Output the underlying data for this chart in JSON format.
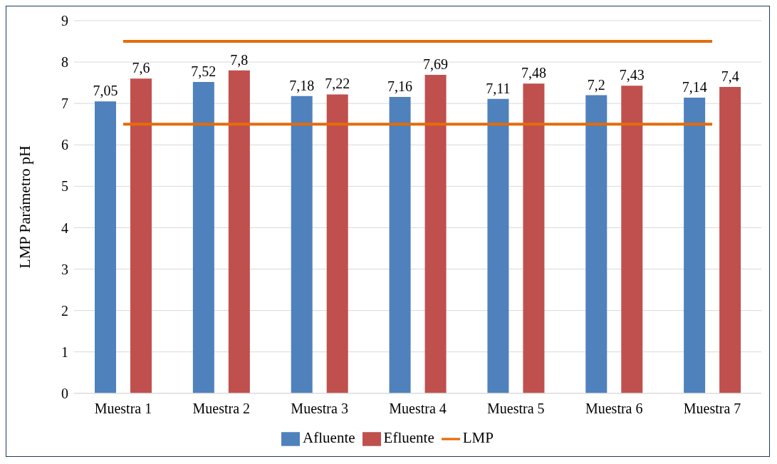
{
  "chart_data": {
    "type": "bar",
    "ylabel": "LMP Parámetro pH",
    "categories": [
      "Muestra 1",
      "Muestra 2",
      "Muestra 3",
      "Muestra 4",
      "Muestra 5",
      "Muestra 6",
      "Muestra 7"
    ],
    "series": [
      {
        "name": "Afluente",
        "color": "#4f81bd",
        "values": [
          7.05,
          7.52,
          7.18,
          7.16,
          7.11,
          7.2,
          7.14
        ],
        "value_labels": [
          "7,05",
          "7,52",
          "7,18",
          "7,16",
          "7,11",
          "7,2",
          "7,14"
        ]
      },
      {
        "name": "Efluente",
        "color": "#c0504d",
        "values": [
          7.6,
          7.8,
          7.22,
          7.69,
          7.48,
          7.43,
          7.4
        ],
        "value_labels": [
          "7,6",
          "7,8",
          "7,22",
          "7,69",
          "7,48",
          "7,43",
          "7,4"
        ]
      },
      {
        "name": "LMP",
        "type": "line",
        "color": "#e46c0a",
        "values": [
          8.5,
          8.5,
          8.5,
          8.5,
          8.5,
          8.5,
          8.5
        ]
      },
      {
        "type": "line",
        "color": "#e46c0a",
        "values": [
          6.5,
          6.5,
          6.5,
          6.5,
          6.5,
          6.5,
          6.5
        ]
      }
    ],
    "ylim": [
      0,
      9
    ],
    "yticks": [
      0,
      1,
      2,
      3,
      4,
      5,
      6,
      7,
      8,
      9
    ],
    "grid": "y",
    "legend": "bottom",
    "marker": "none"
  }
}
